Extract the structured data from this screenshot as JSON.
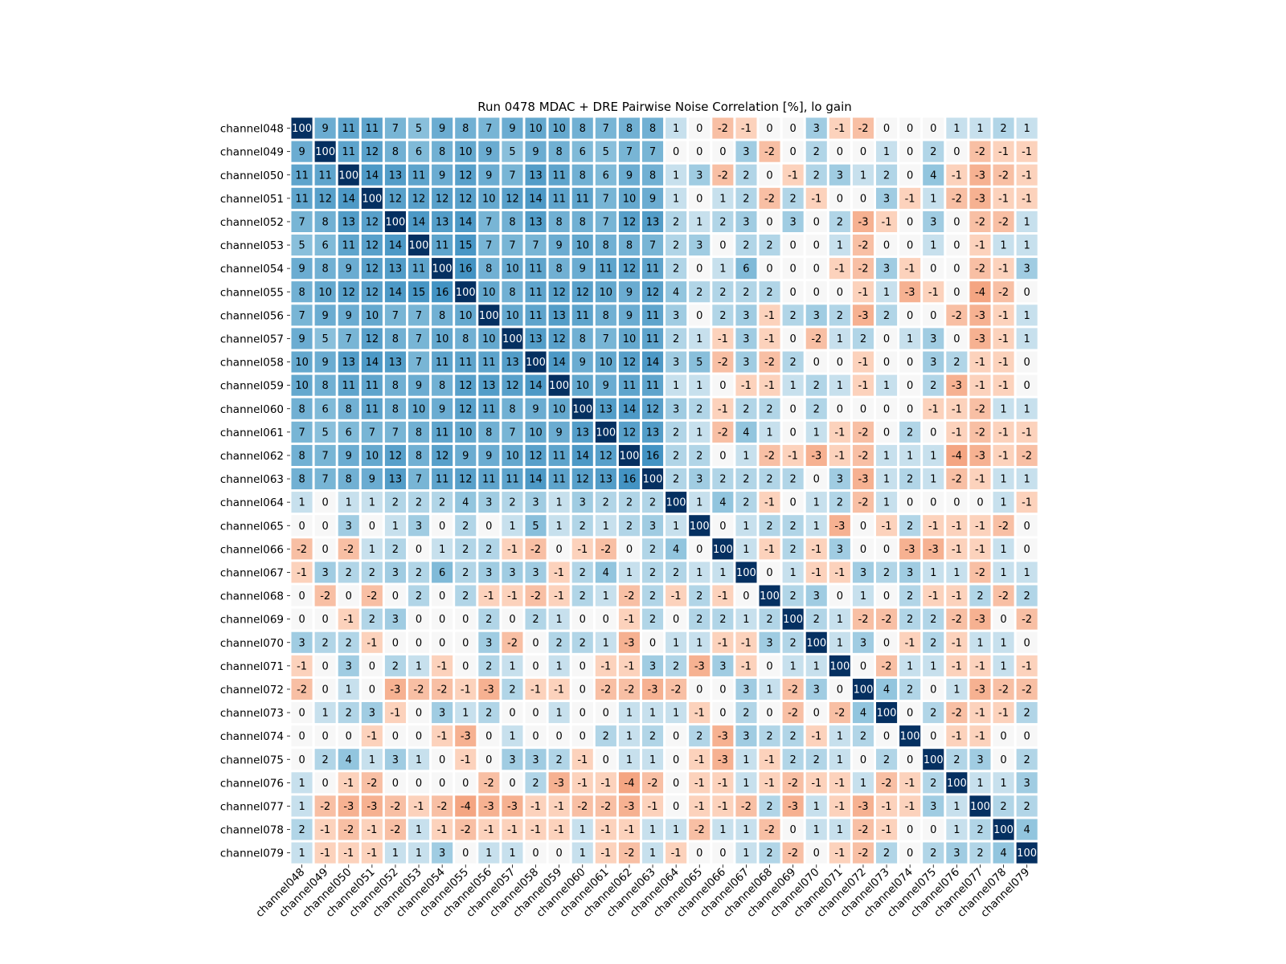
{
  "chart_data": {
    "type": "heatmap",
    "title": "Run 0478 MDAC + DRE Pairwise Noise Correlation [%], lo gain",
    "xlabel": "",
    "ylabel": "",
    "colormap": "RdBu",
    "vmin": -100,
    "vmax": 100,
    "grid": false,
    "legend": "none",
    "x_labels": [
      "channel048",
      "channel049",
      "channel050",
      "channel051",
      "channel052",
      "channel053",
      "channel054",
      "channel055",
      "channel056",
      "channel057",
      "channel058",
      "channel059",
      "channel060",
      "channel061",
      "channel062",
      "channel063",
      "channel064",
      "channel065",
      "channel066",
      "channel067",
      "channel068",
      "channel069",
      "channel070",
      "channel071",
      "channel072",
      "channel073",
      "channel074",
      "channel075",
      "channel076",
      "channel077",
      "channel078",
      "channel079"
    ],
    "y_labels": [
      "channel048",
      "channel049",
      "channel050",
      "channel051",
      "channel052",
      "channel053",
      "channel054",
      "channel055",
      "channel056",
      "channel057",
      "channel058",
      "channel059",
      "channel060",
      "channel061",
      "channel062",
      "channel063",
      "channel064",
      "channel065",
      "channel066",
      "channel067",
      "channel068",
      "channel069",
      "channel070",
      "channel071",
      "channel072",
      "channel073",
      "channel074",
      "channel075",
      "channel076",
      "channel077",
      "channel078",
      "channel079"
    ],
    "values": [
      [
        100,
        9,
        11,
        11,
        7,
        5,
        9,
        8,
        7,
        9,
        10,
        10,
        8,
        7,
        8,
        8,
        1,
        0,
        -2,
        -1,
        0,
        0,
        3,
        -1,
        -2,
        0,
        0,
        0,
        1,
        1,
        2,
        1
      ],
      [
        9,
        100,
        11,
        12,
        8,
        6,
        8,
        10,
        9,
        5,
        9,
        8,
        6,
        5,
        7,
        7,
        0,
        0,
        0,
        3,
        -2,
        0,
        2,
        0,
        0,
        1,
        0,
        2,
        0,
        -2,
        -1,
        -1
      ],
      [
        11,
        11,
        100,
        14,
        13,
        11,
        9,
        12,
        9,
        7,
        13,
        11,
        8,
        6,
        9,
        8,
        1,
        3,
        -2,
        2,
        0,
        -1,
        2,
        3,
        1,
        2,
        0,
        4,
        -1,
        -3,
        -2,
        -1
      ],
      [
        11,
        12,
        14,
        100,
        12,
        12,
        12,
        12,
        10,
        12,
        14,
        11,
        11,
        7,
        10,
        9,
        1,
        0,
        1,
        2,
        -2,
        2,
        -1,
        0,
        0,
        3,
        -1,
        1,
        -2,
        -3,
        -1,
        -1
      ],
      [
        7,
        8,
        13,
        12,
        100,
        14,
        13,
        14,
        7,
        8,
        13,
        8,
        8,
        7,
        12,
        13,
        2,
        1,
        2,
        3,
        0,
        3,
        0,
        2,
        -3,
        -1,
        0,
        3,
        0,
        -2,
        -2,
        1
      ],
      [
        5,
        6,
        11,
        12,
        14,
        100,
        11,
        15,
        7,
        7,
        7,
        9,
        10,
        8,
        8,
        7,
        2,
        3,
        0,
        2,
        2,
        0,
        0,
        1,
        -2,
        0,
        0,
        1,
        0,
        -1,
        1,
        1
      ],
      [
        9,
        8,
        9,
        12,
        13,
        11,
        100,
        16,
        8,
        10,
        11,
        8,
        9,
        11,
        12,
        11,
        2,
        0,
        1,
        6,
        0,
        0,
        0,
        -1,
        -2,
        3,
        -1,
        0,
        0,
        -2,
        -1,
        3
      ],
      [
        8,
        10,
        12,
        12,
        14,
        15,
        16,
        100,
        10,
        8,
        11,
        12,
        12,
        10,
        9,
        12,
        4,
        2,
        2,
        2,
        2,
        0,
        0,
        0,
        -1,
        1,
        -3,
        -1,
        0,
        -4,
        -2,
        0
      ],
      [
        7,
        9,
        9,
        10,
        7,
        7,
        8,
        10,
        100,
        10,
        11,
        13,
        11,
        8,
        9,
        11,
        3,
        0,
        2,
        3,
        -1,
        2,
        3,
        2,
        -3,
        2,
        0,
        0,
        -2,
        -3,
        -1,
        1
      ],
      [
        9,
        5,
        7,
        12,
        8,
        7,
        10,
        8,
        10,
        100,
        13,
        12,
        8,
        7,
        10,
        11,
        2,
        1,
        -1,
        3,
        -1,
        0,
        -2,
        1,
        2,
        0,
        1,
        3,
        0,
        -3,
        -1,
        1
      ],
      [
        10,
        9,
        13,
        14,
        13,
        7,
        11,
        11,
        11,
        13,
        100,
        14,
        9,
        10,
        12,
        14,
        3,
        5,
        -2,
        3,
        -2,
        2,
        0,
        0,
        -1,
        0,
        0,
        3,
        2,
        -1,
        -1,
        0
      ],
      [
        10,
        8,
        11,
        11,
        8,
        9,
        8,
        12,
        13,
        12,
        14,
        100,
        10,
        9,
        11,
        11,
        1,
        1,
        0,
        -1,
        -1,
        1,
        2,
        1,
        -1,
        1,
        0,
        2,
        -3,
        -1,
        -1,
        0
      ],
      [
        8,
        6,
        8,
        11,
        8,
        10,
        9,
        12,
        11,
        8,
        9,
        10,
        100,
        13,
        14,
        12,
        3,
        2,
        -1,
        2,
        2,
        0,
        2,
        0,
        0,
        0,
        0,
        -1,
        -1,
        -2,
        1,
        1
      ],
      [
        7,
        5,
        6,
        7,
        7,
        8,
        11,
        10,
        8,
        7,
        10,
        9,
        13,
        100,
        12,
        13,
        2,
        1,
        -2,
        4,
        1,
        0,
        1,
        -1,
        -2,
        0,
        2,
        0,
        -1,
        -2,
        -1,
        -1
      ],
      [
        8,
        7,
        9,
        10,
        12,
        8,
        12,
        9,
        9,
        10,
        12,
        11,
        14,
        12,
        100,
        16,
        2,
        2,
        0,
        1,
        -2,
        -1,
        -3,
        -1,
        -2,
        1,
        1,
        1,
        -4,
        -3,
        -1,
        -2
      ],
      [
        8,
        7,
        8,
        9,
        13,
        7,
        11,
        12,
        11,
        11,
        14,
        11,
        12,
        13,
        16,
        100,
        2,
        3,
        2,
        2,
        2,
        2,
        0,
        3,
        -3,
        1,
        2,
        1,
        -2,
        -1,
        1,
        1
      ],
      [
        1,
        0,
        1,
        1,
        2,
        2,
        2,
        4,
        3,
        2,
        3,
        1,
        3,
        2,
        2,
        2,
        100,
        1,
        4,
        2,
        -1,
        0,
        1,
        2,
        -2,
        1,
        0,
        0,
        0,
        0,
        1,
        -1
      ],
      [
        0,
        0,
        3,
        0,
        1,
        3,
        0,
        2,
        0,
        1,
        5,
        1,
        2,
        1,
        2,
        3,
        1,
        100,
        0,
        1,
        2,
        2,
        1,
        -3,
        0,
        -1,
        2,
        -1,
        -1,
        -1,
        -2,
        0
      ],
      [
        -2,
        0,
        -2,
        1,
        2,
        0,
        1,
        2,
        2,
        -1,
        -2,
        0,
        -1,
        -2,
        0,
        2,
        4,
        0,
        100,
        1,
        -1,
        2,
        -1,
        3,
        0,
        0,
        -3,
        -3,
        -1,
        -1,
        1,
        0
      ],
      [
        -1,
        3,
        2,
        2,
        3,
        2,
        6,
        2,
        3,
        3,
        3,
        -1,
        2,
        4,
        1,
        2,
        2,
        1,
        1,
        100,
        0,
        1,
        -1,
        -1,
        3,
        2,
        3,
        1,
        1,
        -2,
        1,
        1
      ],
      [
        0,
        -2,
        0,
        -2,
        0,
        2,
        0,
        2,
        -1,
        -1,
        -2,
        -1,
        2,
        1,
        -2,
        2,
        -1,
        2,
        -1,
        0,
        100,
        2,
        3,
        0,
        1,
        0,
        2,
        -1,
        -1,
        2,
        -2,
        2
      ],
      [
        0,
        0,
        -1,
        2,
        3,
        0,
        0,
        0,
        2,
        0,
        2,
        1,
        0,
        0,
        -1,
        2,
        0,
        2,
        2,
        1,
        2,
        100,
        2,
        1,
        -2,
        -2,
        2,
        2,
        -2,
        -3,
        0,
        -2
      ],
      [
        3,
        2,
        2,
        -1,
        0,
        0,
        0,
        0,
        3,
        -2,
        0,
        2,
        2,
        1,
        -3,
        0,
        1,
        1,
        -1,
        -1,
        3,
        2,
        100,
        1,
        3,
        0,
        -1,
        2,
        -1,
        1,
        1,
        0
      ],
      [
        -1,
        0,
        3,
        0,
        2,
        1,
        -1,
        0,
        2,
        1,
        0,
        1,
        0,
        -1,
        -1,
        3,
        2,
        -3,
        3,
        -1,
        0,
        1,
        1,
        100,
        0,
        -2,
        1,
        1,
        -1,
        -1,
        1,
        -1
      ],
      [
        -2,
        0,
        1,
        0,
        -3,
        -2,
        -2,
        -1,
        -3,
        2,
        -1,
        -1,
        0,
        -2,
        -2,
        -3,
        -2,
        0,
        0,
        3,
        1,
        -2,
        3,
        0,
        100,
        4,
        2,
        0,
        1,
        -3,
        -2,
        -2
      ],
      [
        0,
        1,
        2,
        3,
        -1,
        0,
        3,
        1,
        2,
        0,
        0,
        1,
        0,
        0,
        1,
        1,
        1,
        -1,
        0,
        2,
        0,
        -2,
        0,
        -2,
        4,
        100,
        0,
        2,
        -2,
        -1,
        -1,
        2
      ],
      [
        0,
        0,
        0,
        -1,
        0,
        0,
        -1,
        -3,
        0,
        1,
        0,
        0,
        0,
        2,
        1,
        2,
        0,
        2,
        -3,
        3,
        2,
        2,
        -1,
        1,
        2,
        0,
        100,
        0,
        -1,
        -1,
        0,
        0
      ],
      [
        0,
        2,
        4,
        1,
        3,
        1,
        0,
        -1,
        0,
        3,
        3,
        2,
        -1,
        0,
        1,
        1,
        0,
        -1,
        -3,
        1,
        -1,
        2,
        2,
        1,
        0,
        2,
        0,
        100,
        2,
        3,
        0,
        2
      ],
      [
        1,
        0,
        -1,
        -2,
        0,
        0,
        0,
        0,
        -2,
        0,
        2,
        -3,
        -1,
        -1,
        -4,
        -2,
        0,
        -1,
        -1,
        1,
        -1,
        -2,
        -1,
        -1,
        1,
        -2,
        -1,
        2,
        100,
        1,
        1,
        3
      ],
      [
        1,
        -2,
        -3,
        -3,
        -2,
        -1,
        -2,
        -4,
        -3,
        -3,
        -1,
        -1,
        -2,
        -2,
        -3,
        -1,
        0,
        -1,
        -1,
        -2,
        2,
        -3,
        1,
        -1,
        -3,
        -1,
        -1,
        3,
        1,
        100,
        2,
        2
      ],
      [
        2,
        -1,
        -2,
        -1,
        -2,
        1,
        -1,
        -2,
        -1,
        -1,
        -1,
        -1,
        1,
        -1,
        -1,
        1,
        1,
        -2,
        1,
        1,
        -2,
        0,
        1,
        1,
        -2,
        -1,
        0,
        0,
        1,
        2,
        100,
        4
      ],
      [
        1,
        -1,
        -1,
        -1,
        1,
        1,
        3,
        0,
        1,
        1,
        0,
        0,
        1,
        -1,
        -2,
        1,
        -1,
        0,
        0,
        1,
        2,
        -2,
        0,
        -1,
        -2,
        2,
        0,
        2,
        3,
        2,
        4,
        100
      ]
    ]
  }
}
